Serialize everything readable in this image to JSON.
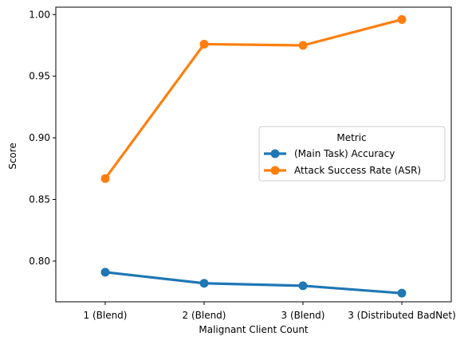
{
  "chart_data": {
    "type": "line",
    "xlabel": "Malignant Client Count",
    "ylabel": "Score",
    "categories": [
      "1 (Blend)",
      "2 (Blend)",
      "3 (Blend)",
      "3 (Distributed BadNet)"
    ],
    "ylim": [
      0.767,
      1.006
    ],
    "yticks": [
      "0.80",
      "0.85",
      "0.90",
      "0.95",
      "1.00"
    ],
    "ytick_values": [
      0.8,
      0.85,
      0.9,
      0.95,
      1.0
    ],
    "grid": false,
    "legend": {
      "title": "Metric",
      "placement": "center-right"
    },
    "series": [
      {
        "name": "(Main Task) Accuracy",
        "color": "#1f77b4",
        "values": [
          0.791,
          0.782,
          0.78,
          0.774
        ]
      },
      {
        "name": "Attack Success Rate (ASR)",
        "color": "#ff7f0e",
        "values": [
          0.867,
          0.976,
          0.975,
          0.996
        ]
      }
    ]
  }
}
